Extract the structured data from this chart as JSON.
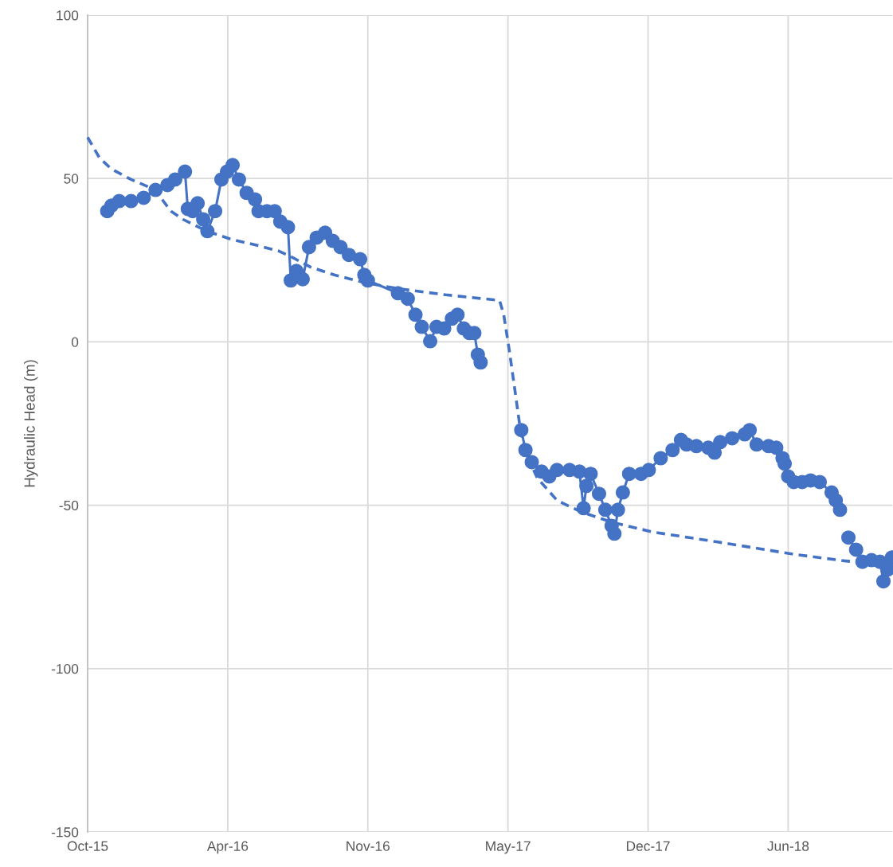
{
  "chart_data": {
    "type": "line",
    "ylabel": "Hydraulic Head (m)",
    "grid": true,
    "xlim": [
      "2015-10-01",
      "2018-11-23"
    ],
    "xticks": [
      {
        "value": "2015-10-01",
        "label": "Oct-15"
      },
      {
        "value": "2016-04-18",
        "label": "Apr-16"
      },
      {
        "value": "2016-11-04",
        "label": "Nov-16"
      },
      {
        "value": "2017-05-23",
        "label": "May-17"
      },
      {
        "value": "2017-12-09",
        "label": "Dec-17"
      },
      {
        "value": "2018-06-27",
        "label": "Jun-18"
      }
    ],
    "ylim": [
      -150,
      100
    ],
    "yticks": [
      -150,
      -100,
      -50,
      0,
      50,
      100
    ],
    "series": [
      {
        "color": "#4472c4",
        "marker": "circle",
        "line_style": "solid",
        "x": [
          "2015-10-29",
          "2015-11-04",
          "2015-11-15",
          "2015-12-02",
          "2015-12-20",
          "2016-01-06",
          "2016-01-23",
          "2016-02-03",
          "2016-02-17",
          "2016-02-21",
          "2016-02-28",
          "2016-03-06",
          "2016-03-14",
          "2016-03-20",
          "2016-03-31",
          "2016-04-09",
          "2016-04-17",
          "2016-04-25",
          "2016-05-04",
          "2016-05-15",
          "2016-05-27",
          "2016-06-01",
          "2016-06-13",
          "2016-06-24",
          "2016-07-02",
          "2016-07-13",
          "2016-07-17",
          "2016-07-25",
          "2016-08-03",
          "2016-08-12",
          "2016-08-23",
          "2016-09-04",
          "2016-09-15",
          "2016-09-26",
          "2016-10-08",
          "2016-10-24",
          "2016-10-30",
          "2016-11-04",
          "2016-12-17",
          "2016-12-31",
          "2017-01-11",
          "2017-01-20",
          "2017-02-01",
          "2017-02-10",
          "2017-02-21",
          "2017-03-04",
          "2017-03-12",
          "2017-03-21",
          "2017-03-29",
          "2017-04-05",
          "2017-04-10",
          "2017-04-14",
          "2017-04-30",
          "2017-06-11",
          "2017-06-17",
          "2017-06-26",
          "2017-07-10",
          "2017-07-21",
          "2017-08-01",
          "2017-08-19",
          "2017-09-02",
          "2017-09-08",
          "2017-09-12",
          "2017-09-18",
          "2017-09-30",
          "2017-10-09",
          "2017-10-18",
          "2017-10-22",
          "2017-10-27",
          "2017-11-03",
          "2017-11-12",
          "2017-11-29",
          "2017-12-10",
          "2017-12-27",
          "2018-01-13",
          "2018-01-25",
          "2018-02-02",
          "2018-02-16",
          "2018-03-05",
          "2018-03-14",
          "2018-03-22",
          "2018-04-08",
          "2018-04-26",
          "2018-05-03",
          "2018-05-13",
          "2018-05-30",
          "2018-06-10",
          "2018-06-19",
          "2018-06-22",
          "2018-06-27",
          "2018-07-05",
          "2018-07-17",
          "2018-07-29",
          "2018-08-11",
          "2018-08-28",
          "2018-09-03",
          "2018-09-09",
          "2018-09-15",
          "2018-09-21",
          "2018-10-02",
          "2018-10-11",
          "2018-10-24",
          "2018-11-05",
          "2018-11-10",
          "2018-11-16",
          "2018-11-22"
        ],
        "values": [
          40,
          41.7,
          43.1,
          43.1,
          44.1,
          46.5,
          48,
          49.7,
          52.1,
          40.7,
          40,
          42.4,
          37.5,
          33.9,
          40,
          49.7,
          52.1,
          54.1,
          49.7,
          45.6,
          43.6,
          40,
          40,
          40,
          36.8,
          35.1,
          18.8,
          21.7,
          19.2,
          29,
          31.9,
          33.4,
          30.9,
          29,
          26.6,
          25.3,
          20.5,
          18.8,
          14.9,
          13.2,
          8.3,
          4.6,
          0.2,
          4.6,
          4.1,
          7.1,
          8.3,
          4.1,
          2.7,
          2.7,
          -3.9,
          -6.3,
          null,
          -27,
          -33.1,
          -36.8,
          -39.7,
          -41.2,
          -39.2,
          -39.2,
          -39.7,
          -50.9,
          -44.1,
          -40.4,
          -46.5,
          -51.4,
          -56.3,
          -58.7,
          -51.4,
          -46.1,
          -40.4,
          -40.4,
          -39.2,
          -35.6,
          -33.1,
          -30,
          -31.4,
          -31.9,
          -32.4,
          -33.9,
          -30.7,
          -29.5,
          -28.3,
          -27,
          -31.4,
          -31.9,
          -32.4,
          -35.6,
          -37.3,
          -41.2,
          -42.9,
          -42.9,
          -42.4,
          -42.9,
          -46.1,
          -48.5,
          -51.4,
          null,
          -59.9,
          -63.6,
          -67.3,
          -66.8,
          -67.3,
          -73.3,
          -69.7,
          -66
        ]
      },
      {
        "color": "#4472c4",
        "marker": "none",
        "line_style": "dashed",
        "x": [
          "2015-10-01",
          "2015-10-18",
          "2015-11-04",
          "2015-12-02",
          "2016-01-06",
          "2016-01-17",
          "2016-01-28",
          "2016-02-14",
          "2016-03-19",
          "2016-04-23",
          "2016-05-27",
          "2016-06-30",
          "2016-07-17",
          "2016-08-14",
          "2016-09-17",
          "2016-11-02",
          "2016-12-17",
          "2017-02-23",
          "2017-05-11",
          "2017-05-17",
          "2017-05-25",
          "2017-06-02",
          "2017-06-09",
          "2017-06-17",
          "2017-07-04",
          "2017-08-01",
          "2017-09-05",
          "2017-10-20",
          "2017-12-16",
          "2018-03-17",
          "2018-07-08",
          "2018-09-15",
          "2018-11-23"
        ],
        "values": [
          62.6,
          56.3,
          52.9,
          49.7,
          46.5,
          43.1,
          40,
          37.5,
          33.9,
          31.4,
          29.7,
          27.8,
          26.1,
          22.9,
          20.5,
          18,
          16.3,
          14.4,
          12.7,
          8.3,
          -2.7,
          -14.9,
          -25.8,
          -33.9,
          -41.7,
          -48.5,
          -52.1,
          -55.3,
          -58.2,
          -61.2,
          -65.1,
          -67,
          -68.5
        ]
      }
    ]
  }
}
